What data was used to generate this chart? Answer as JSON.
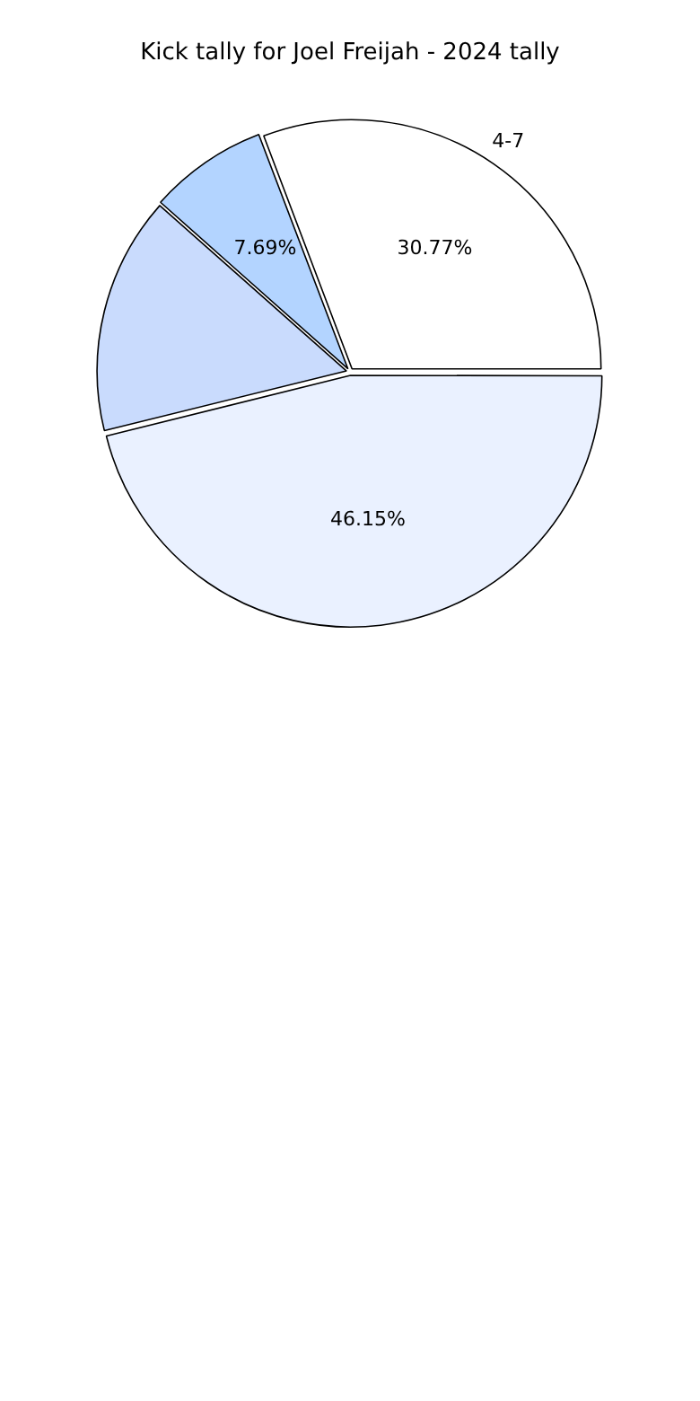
{
  "chart_data": {
    "type": "pie",
    "title": "Kick tally for Joel Freijah - 2024 tally",
    "categories": [
      "4-7",
      null,
      null,
      null
    ],
    "values": [
      30.77,
      46.15,
      15.38,
      7.69
    ],
    "colors": [
      "#ffffff",
      "#eaf1ff",
      "#c9dbfd",
      "#b3d4ff"
    ],
    "value_labels": [
      "30.77%",
      "46.15%",
      null,
      "7.69%"
    ],
    "legend": false
  }
}
